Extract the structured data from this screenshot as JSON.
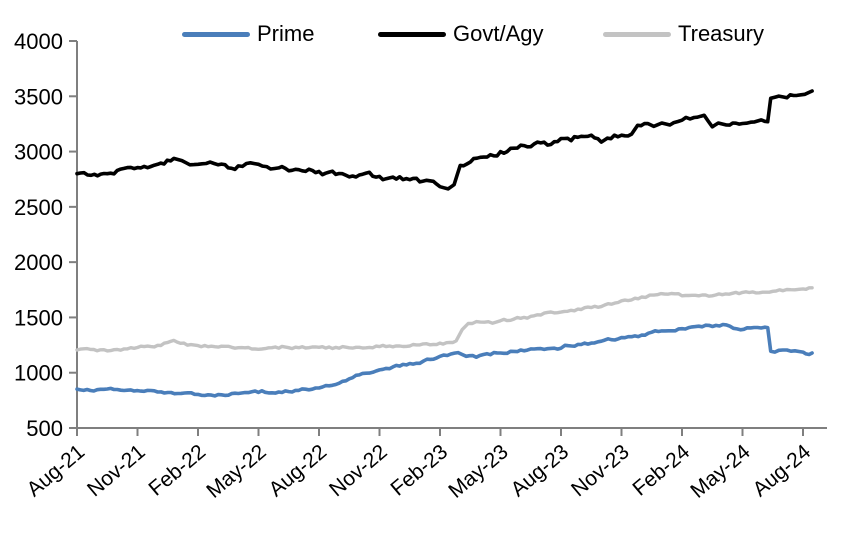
{
  "page": {
    "background": "#ffffff"
  },
  "chart_data": {
    "type": "line",
    "title": "",
    "grid": false,
    "legend_position": "top",
    "axis_color": "#7f7f7f",
    "text_color": "#000000",
    "x_axis": {
      "tick_labels": [
        "Aug-21",
        "Nov-21",
        "Feb-22",
        "May-22",
        "Aug-22",
        "Nov-22",
        "Feb-23",
        "May-23",
        "Aug-23",
        "Nov-23",
        "Feb-24",
        "May-24",
        "Aug-24"
      ],
      "months_between_ticks": 3,
      "months_total": 36,
      "data_end_month": 36.45,
      "label_rotation_deg": -40
    },
    "y_axis": {
      "min": 500,
      "max": 4000,
      "step": 500,
      "tick_labels": [
        "500",
        "1000",
        "1500",
        "2000",
        "2500",
        "3000",
        "3500",
        "4000"
      ]
    },
    "series": [
      {
        "name": "Prime",
        "color": "#4a7eba",
        "line_width": 3.6,
        "wiggle": 1.1,
        "points": [
          [
            0,
            852
          ],
          [
            0.5,
            848
          ],
          [
            1,
            846
          ],
          [
            2,
            848
          ],
          [
            2.5,
            842
          ],
          [
            3,
            838
          ],
          [
            4,
            826
          ],
          [
            5,
            812
          ],
          [
            6,
            804
          ],
          [
            6.5,
            800
          ],
          [
            7,
            802
          ],
          [
            8,
            812
          ],
          [
            8.5,
            820
          ],
          [
            9,
            822
          ],
          [
            9.5,
            817
          ],
          [
            10,
            826
          ],
          [
            11,
            840
          ],
          [
            12,
            862
          ],
          [
            13,
            905
          ],
          [
            13.5,
            945
          ],
          [
            14,
            980
          ],
          [
            15,
            1025
          ],
          [
            16,
            1060
          ],
          [
            17,
            1085
          ],
          [
            17.2,
            1108
          ],
          [
            18,
            1148
          ],
          [
            18.9,
            1182
          ],
          [
            19.3,
            1148
          ],
          [
            19.8,
            1140
          ],
          [
            20.5,
            1163
          ],
          [
            21,
            1178
          ],
          [
            22,
            1205
          ],
          [
            23,
            1218
          ],
          [
            24,
            1222
          ],
          [
            24.2,
            1248
          ],
          [
            25,
            1255
          ],
          [
            26,
            1285
          ],
          [
            27,
            1318
          ],
          [
            28,
            1340
          ],
          [
            29,
            1378
          ],
          [
            30,
            1398
          ],
          [
            31,
            1415
          ],
          [
            32.2,
            1432
          ],
          [
            32.9,
            1388
          ],
          [
            33.4,
            1405
          ],
          [
            34.1,
            1412
          ],
          [
            34.25,
            1408
          ],
          [
            34.4,
            1195
          ],
          [
            35,
            1205
          ],
          [
            35.6,
            1198
          ],
          [
            36,
            1186
          ],
          [
            36.45,
            1178
          ]
        ]
      },
      {
        "name": "Govt/Agy",
        "color": "#000000",
        "line_width": 3.6,
        "wiggle": 2.3,
        "points": [
          [
            0,
            2800
          ],
          [
            0.7,
            2785
          ],
          [
            1.5,
            2800
          ],
          [
            2,
            2830
          ],
          [
            3,
            2855
          ],
          [
            4,
            2885
          ],
          [
            4.8,
            2938
          ],
          [
            5.2,
            2918
          ],
          [
            5.6,
            2880
          ],
          [
            6,
            2885
          ],
          [
            6.6,
            2905
          ],
          [
            7,
            2880
          ],
          [
            7.5,
            2852
          ],
          [
            8,
            2870
          ],
          [
            8.6,
            2898
          ],
          [
            9,
            2885
          ],
          [
            9.6,
            2842
          ],
          [
            10,
            2852
          ],
          [
            10.5,
            2826
          ],
          [
            11,
            2836
          ],
          [
            12,
            2820
          ],
          [
            13,
            2802
          ],
          [
            14,
            2788
          ],
          [
            15,
            2775
          ],
          [
            15.5,
            2762
          ],
          [
            16,
            2772
          ],
          [
            16.5,
            2746
          ],
          [
            17,
            2726
          ],
          [
            17.5,
            2736
          ],
          [
            18,
            2682
          ],
          [
            18.4,
            2662
          ],
          [
            18.7,
            2700
          ],
          [
            19,
            2875
          ],
          [
            19.5,
            2905
          ],
          [
            20,
            2948
          ],
          [
            20.5,
            2972
          ],
          [
            21,
            3000
          ],
          [
            21.5,
            3030
          ],
          [
            22,
            3058
          ],
          [
            22.5,
            3044
          ],
          [
            23,
            3078
          ],
          [
            23.5,
            3064
          ],
          [
            24,
            3118
          ],
          [
            24.5,
            3098
          ],
          [
            25,
            3138
          ],
          [
            25.5,
            3148
          ],
          [
            26,
            3086
          ],
          [
            26.3,
            3122
          ],
          [
            27,
            3148
          ],
          [
            27.5,
            3158
          ],
          [
            27.8,
            3238
          ],
          [
            28.3,
            3254
          ],
          [
            28.6,
            3228
          ],
          [
            29,
            3258
          ],
          [
            29.4,
            3240
          ],
          [
            30,
            3284
          ],
          [
            30.6,
            3308
          ],
          [
            31.1,
            3328
          ],
          [
            31.5,
            3224
          ],
          [
            31.8,
            3258
          ],
          [
            32.2,
            3240
          ],
          [
            33,
            3254
          ],
          [
            33.6,
            3268
          ],
          [
            34.1,
            3274
          ],
          [
            34.25,
            3270
          ],
          [
            34.4,
            3482
          ],
          [
            34.8,
            3502
          ],
          [
            35.2,
            3486
          ],
          [
            35.7,
            3508
          ],
          [
            36.1,
            3518
          ],
          [
            36.45,
            3548
          ]
        ]
      },
      {
        "name": "Treasury",
        "color": "#c3c3c3",
        "line_width": 3.4,
        "wiggle": 1.2,
        "points": [
          [
            0,
            1205
          ],
          [
            1,
            1198
          ],
          [
            2,
            1210
          ],
          [
            3,
            1228
          ],
          [
            4,
            1248
          ],
          [
            4.8,
            1292
          ],
          [
            5.3,
            1268
          ],
          [
            6,
            1245
          ],
          [
            7,
            1232
          ],
          [
            8,
            1226
          ],
          [
            9,
            1212
          ],
          [
            10,
            1222
          ],
          [
            11,
            1226
          ],
          [
            12,
            1230
          ],
          [
            13,
            1222
          ],
          [
            14,
            1230
          ],
          [
            15,
            1236
          ],
          [
            16,
            1242
          ],
          [
            17,
            1252
          ],
          [
            18,
            1268
          ],
          [
            18.8,
            1288
          ],
          [
            19.1,
            1390
          ],
          [
            19.4,
            1445
          ],
          [
            20,
            1458
          ],
          [
            20.6,
            1448
          ],
          [
            21,
            1470
          ],
          [
            22,
            1492
          ],
          [
            23,
            1522
          ],
          [
            24,
            1548
          ],
          [
            25,
            1572
          ],
          [
            26,
            1598
          ],
          [
            27,
            1650
          ],
          [
            28,
            1685
          ],
          [
            28.6,
            1702
          ],
          [
            29.3,
            1710
          ],
          [
            30,
            1696
          ],
          [
            30.5,
            1700
          ],
          [
            31,
            1703
          ],
          [
            31.5,
            1696
          ],
          [
            32,
            1706
          ],
          [
            32.5,
            1718
          ],
          [
            33,
            1726
          ],
          [
            33.5,
            1731
          ],
          [
            34,
            1728
          ],
          [
            34.5,
            1736
          ],
          [
            35,
            1742
          ],
          [
            35.6,
            1750
          ],
          [
            36,
            1758
          ],
          [
            36.45,
            1768
          ]
        ]
      }
    ]
  }
}
